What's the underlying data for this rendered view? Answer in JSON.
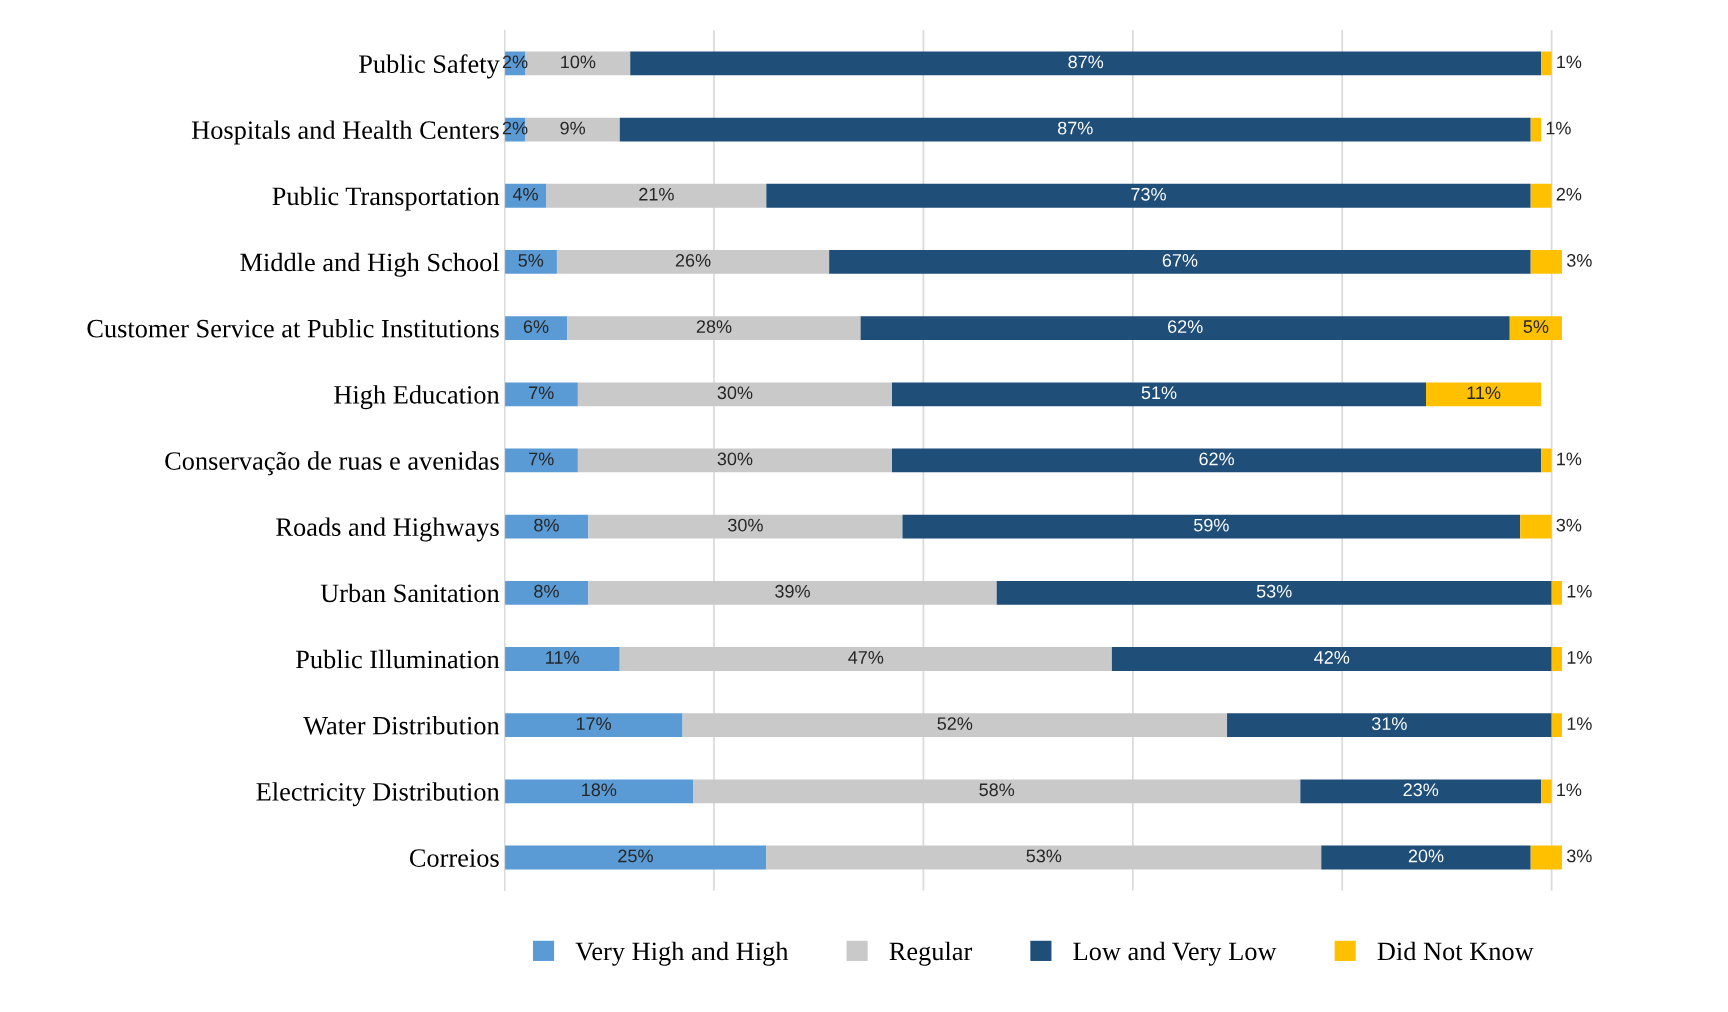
{
  "chart_data": {
    "type": "bar",
    "orientation": "horizontal",
    "stacked": true,
    "grid": "x",
    "legend": "bottom",
    "tick_labels": "y",
    "categories": [
      "Public Safety",
      "Hospitals and Health Centers",
      "Public Transportation",
      "Middle and High School",
      "Customer Service at Public Institutions",
      "High Education",
      "Conservação de ruas e avenidas",
      "Roads and Highways",
      "Urban Sanitation",
      "Public Illumination",
      "Water Distribution",
      "Electricity Distribution",
      "Correios"
    ],
    "series": [
      {
        "name": "Very High and High",
        "color": "#5b9bd5",
        "values": [
          2,
          2,
          4,
          5,
          6,
          7,
          7,
          8,
          8,
          11,
          17,
          18,
          25
        ],
        "value_labels": [
          "2%",
          "2%",
          "4%",
          "5%",
          "6%",
          "7%",
          "7%",
          "8%",
          "8%",
          "11%",
          "17%",
          "18%",
          "25%"
        ]
      },
      {
        "name": "Regular",
        "color": "#c9c9c9",
        "values": [
          10,
          9,
          21,
          26,
          28,
          30,
          30,
          30,
          39,
          47,
          52,
          58,
          53
        ],
        "value_labels": [
          "10%",
          "9%",
          "21%",
          "26%",
          "28%",
          "30%",
          "30%",
          "30%",
          "39%",
          "47%",
          "52%",
          "58%",
          "53%"
        ]
      },
      {
        "name": "Low and Very Low",
        "color": "#1f4e79",
        "values": [
          87,
          87,
          73,
          67,
          62,
          51,
          62,
          59,
          53,
          42,
          31,
          23,
          20
        ],
        "value_labels": [
          "87%",
          "87%",
          "73%",
          "67%",
          "62%",
          "51%",
          "62%",
          "59%",
          "53%",
          "42%",
          "31%",
          "23%",
          "20%"
        ]
      },
      {
        "name": "Did Not Know",
        "color": "#ffc000",
        "values": [
          1,
          1,
          2,
          3,
          5,
          11,
          1,
          3,
          1,
          1,
          1,
          1,
          3
        ],
        "value_labels": [
          "1%",
          "1%",
          "2%",
          "3%",
          "5%",
          "11%",
          "1%",
          "3%",
          "1%",
          "1%",
          "1%",
          "1%",
          "3%"
        ]
      }
    ]
  }
}
